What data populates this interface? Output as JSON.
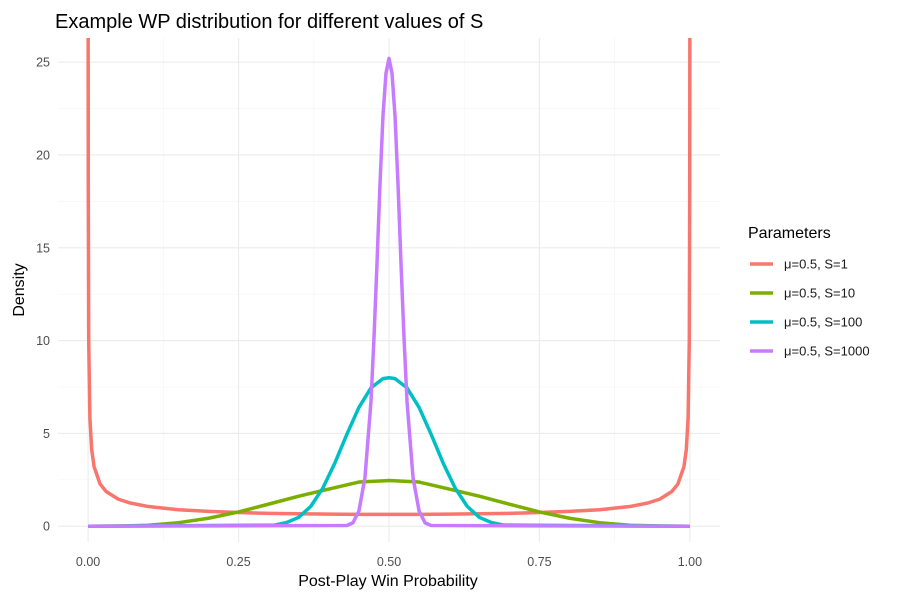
{
  "chart_data": {
    "type": "line",
    "title": "Example WP distribution for different values of S",
    "xlabel": "Post-Play Win Probability",
    "ylabel": "Density",
    "xlim": [
      -0.05,
      1.05
    ],
    "ylim": [
      -0.85,
      26.3
    ],
    "x_ticks": [
      0,
      0.25,
      0.5,
      0.75,
      1
    ],
    "x_tick_labels": [
      "0.00",
      "0.25",
      "0.50",
      "0.75",
      "1.00"
    ],
    "y_ticks": [
      0,
      5,
      10,
      15,
      20,
      25
    ],
    "y_tick_labels": [
      "0",
      "5",
      "10",
      "15",
      "20",
      "25"
    ],
    "grid": true,
    "legend": {
      "title": "Parameters",
      "placement": "right"
    },
    "series": [
      {
        "name": "μ=0.5, S=1",
        "color": "#F8766D",
        "x": [
          0.0003,
          0.001,
          0.003,
          0.006,
          0.01,
          0.02,
          0.03,
          0.05,
          0.07,
          0.1,
          0.15,
          0.2,
          0.25,
          0.3,
          0.35,
          0.4,
          0.45,
          0.5,
          0.55,
          0.6,
          0.65,
          0.7,
          0.75,
          0.8,
          0.85,
          0.9,
          0.93,
          0.95,
          0.97,
          0.98,
          0.99,
          0.994,
          0.997,
          0.999,
          0.9997
        ],
        "y": [
          18.38,
          10.07,
          5.82,
          4.12,
          3.2,
          2.27,
          1.87,
          1.46,
          1.25,
          1.06,
          0.89,
          0.8,
          0.74,
          0.69,
          0.67,
          0.65,
          0.64,
          0.64,
          0.64,
          0.65,
          0.67,
          0.69,
          0.74,
          0.8,
          0.89,
          1.06,
          1.25,
          1.46,
          1.87,
          2.27,
          3.2,
          4.12,
          5.82,
          10.07,
          18.38
        ]
      },
      {
        "name": "μ=0.5, S=10",
        "color": "#7CAE00",
        "x": [
          0.05,
          0.1,
          0.15,
          0.2,
          0.25,
          0.3,
          0.35,
          0.4,
          0.45,
          0.5,
          0.55,
          0.6,
          0.65,
          0.7,
          0.75,
          0.8,
          0.85,
          0.9,
          0.95
        ],
        "y": [
          0.01,
          0.05,
          0.19,
          0.43,
          0.77,
          1.19,
          1.62,
          2.0,
          2.38,
          2.46,
          2.38,
          2.0,
          1.62,
          1.19,
          0.77,
          0.43,
          0.19,
          0.05,
          0.01
        ]
      },
      {
        "name": "μ=0.5, S=100",
        "color": "#00BFC4",
        "x": [
          0.31,
          0.33,
          0.35,
          0.37,
          0.39,
          0.41,
          0.43,
          0.45,
          0.47,
          0.49,
          0.5,
          0.51,
          0.53,
          0.55,
          0.57,
          0.59,
          0.61,
          0.63,
          0.65,
          0.67,
          0.69
        ],
        "y": [
          0.06,
          0.2,
          0.48,
          1.07,
          2.05,
          3.4,
          4.95,
          6.4,
          7.45,
          7.95,
          8.0,
          7.95,
          7.45,
          6.4,
          4.95,
          3.4,
          2.05,
          1.07,
          0.48,
          0.2,
          0.06
        ]
      },
      {
        "name": "μ=0.5, S=1000",
        "color": "#C77CFF",
        "x": [
          0.43,
          0.44,
          0.45,
          0.46,
          0.47,
          0.475,
          0.48,
          0.485,
          0.49,
          0.495,
          0.5,
          0.505,
          0.51,
          0.515,
          0.52,
          0.525,
          0.53,
          0.54,
          0.55,
          0.56,
          0.57
        ],
        "y": [
          0.04,
          0.18,
          0.82,
          2.6,
          6.7,
          10.1,
          14.1,
          18.4,
          22.1,
          24.4,
          25.2,
          24.4,
          22.1,
          18.4,
          14.1,
          10.1,
          6.7,
          2.6,
          0.82,
          0.18,
          0.04
        ]
      }
    ]
  }
}
